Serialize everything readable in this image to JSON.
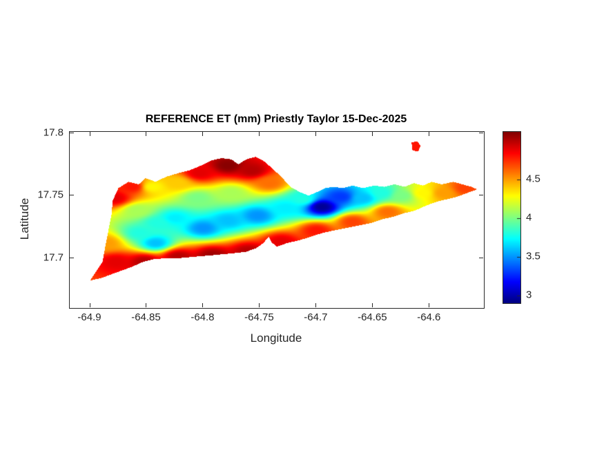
{
  "style": {
    "background": "#ffffff",
    "axis_color": "#262626",
    "title_color": "#000000",
    "colormap_low": "#00008f",
    "colormap_high": "#7f0000"
  },
  "chart_data": {
    "type": "heatmap",
    "title": "REFERENCE ET (mm) Priestly Taylor 15-Dec-2025",
    "xlabel": "Longitude",
    "ylabel": "Latitude",
    "units": "mm",
    "colormap": "jet",
    "grid": false,
    "xlim": [
      -64.918,
      -64.552
    ],
    "ylim": [
      17.66,
      17.801
    ],
    "clim": [
      2.9,
      5.12
    ],
    "x_tick_values": [
      -64.9,
      -64.85,
      -64.8,
      -64.75,
      -64.7,
      -64.65,
      -64.6
    ],
    "x_tick_labels": [
      "-64.9",
      "-64.85",
      "-64.8",
      "-64.75",
      "-64.7",
      "-64.65",
      "-64.6"
    ],
    "y_tick_values": [
      17.7,
      17.75,
      17.8
    ],
    "y_tick_labels": [
      "17.7",
      "17.75",
      "17.8"
    ],
    "colorbar_tick_values": [
      3,
      3.5,
      4,
      4.5
    ],
    "colorbar_tick_labels": [
      "3",
      "3.5",
      "4",
      "4.5"
    ],
    "interpolation": {
      "method": "idw",
      "power": 3,
      "lat_weight": 2.2
    },
    "region_outline": [
      [
        -64.9,
        17.682
      ],
      [
        -64.889,
        17.697
      ],
      [
        -64.886,
        17.712
      ],
      [
        -64.881,
        17.735
      ],
      [
        -64.88,
        17.746
      ],
      [
        -64.875,
        17.756
      ],
      [
        -64.866,
        17.761
      ],
      [
        -64.857,
        17.759
      ],
      [
        -64.851,
        17.764
      ],
      [
        -64.842,
        17.761
      ],
      [
        -64.833,
        17.765
      ],
      [
        -64.822,
        17.768
      ],
      [
        -64.813,
        17.77
      ],
      [
        -64.802,
        17.774
      ],
      [
        -64.793,
        17.778
      ],
      [
        -64.784,
        17.78
      ],
      [
        -64.775,
        17.779
      ],
      [
        -64.769,
        17.775
      ],
      [
        -64.762,
        17.779
      ],
      [
        -64.754,
        17.781
      ],
      [
        -64.747,
        17.778
      ],
      [
        -64.738,
        17.771
      ],
      [
        -64.73,
        17.764
      ],
      [
        -64.723,
        17.757
      ],
      [
        -64.715,
        17.753
      ],
      [
        -64.707,
        17.75
      ],
      [
        -64.699,
        17.753
      ],
      [
        -64.692,
        17.756
      ],
      [
        -64.685,
        17.757
      ],
      [
        -64.677,
        17.756
      ],
      [
        -64.668,
        17.758
      ],
      [
        -64.659,
        17.756
      ],
      [
        -64.649,
        17.758
      ],
      [
        -64.64,
        17.757
      ],
      [
        -64.631,
        17.759
      ],
      [
        -64.622,
        17.757
      ],
      [
        -64.614,
        17.76
      ],
      [
        -64.606,
        17.758
      ],
      [
        -64.598,
        17.761
      ],
      [
        -64.589,
        17.759
      ],
      [
        -64.579,
        17.761
      ],
      [
        -64.571,
        17.759
      ],
      [
        -64.563,
        17.757
      ],
      [
        -64.558,
        17.755
      ],
      [
        -64.567,
        17.752
      ],
      [
        -64.576,
        17.749
      ],
      [
        -64.585,
        17.747
      ],
      [
        -64.594,
        17.745
      ],
      [
        -64.603,
        17.742
      ],
      [
        -64.613,
        17.738
      ],
      [
        -64.622,
        17.736
      ],
      [
        -64.632,
        17.733
      ],
      [
        -64.642,
        17.731
      ],
      [
        -64.652,
        17.728
      ],
      [
        -64.663,
        17.726
      ],
      [
        -64.674,
        17.724
      ],
      [
        -64.685,
        17.722
      ],
      [
        -64.695,
        17.72
      ],
      [
        -64.705,
        17.717
      ],
      [
        -64.716,
        17.714
      ],
      [
        -64.726,
        17.712
      ],
      [
        -64.735,
        17.709
      ],
      [
        -64.74,
        17.713
      ],
      [
        -64.742,
        17.717
      ],
      [
        -64.747,
        17.712
      ],
      [
        -64.753,
        17.708
      ],
      [
        -64.762,
        17.705
      ],
      [
        -64.772,
        17.704
      ],
      [
        -64.783,
        17.703
      ],
      [
        -64.795,
        17.702
      ],
      [
        -64.808,
        17.701
      ],
      [
        -64.82,
        17.7
      ],
      [
        -64.832,
        17.7
      ],
      [
        -64.844,
        17.699
      ],
      [
        -64.853,
        17.697
      ],
      [
        -64.863,
        17.693
      ],
      [
        -64.872,
        17.69
      ],
      [
        -64.881,
        17.687
      ],
      [
        -64.89,
        17.684
      ]
    ],
    "islet_outline": [
      [
        -64.616,
        17.7925
      ],
      [
        -64.611,
        17.7935
      ],
      [
        -64.608,
        17.79
      ],
      [
        -64.61,
        17.7855
      ],
      [
        -64.615,
        17.786
      ]
    ],
    "samples": [
      [
        -64.886,
        17.712,
        4.5
      ],
      [
        -64.878,
        17.748,
        4.9
      ],
      [
        -64.862,
        17.757,
        4.8
      ],
      [
        -64.845,
        17.757,
        4.3
      ],
      [
        -64.858,
        17.738,
        4.1
      ],
      [
        -64.856,
        17.72,
        3.8
      ],
      [
        -64.842,
        17.712,
        3.6
      ],
      [
        -64.877,
        17.697,
        4.9
      ],
      [
        -64.852,
        17.697,
        5.0
      ],
      [
        -64.823,
        17.76,
        4.4
      ],
      [
        -64.803,
        17.768,
        4.9
      ],
      [
        -64.778,
        17.774,
        5.1
      ],
      [
        -64.757,
        17.77,
        5.0
      ],
      [
        -64.741,
        17.76,
        4.6
      ],
      [
        -64.805,
        17.748,
        4.0
      ],
      [
        -64.775,
        17.752,
        4.1
      ],
      [
        -64.84,
        17.728,
        3.8
      ],
      [
        -64.825,
        17.732,
        3.7
      ],
      [
        -64.8,
        17.724,
        3.5
      ],
      [
        -64.778,
        17.73,
        3.6
      ],
      [
        -64.752,
        17.734,
        3.5
      ],
      [
        -64.727,
        17.74,
        3.7
      ],
      [
        -64.822,
        17.701,
        5.0
      ],
      [
        -64.792,
        17.702,
        5.05
      ],
      [
        -64.76,
        17.705,
        5.0
      ],
      [
        -64.731,
        17.713,
        4.9
      ],
      [
        -64.7,
        17.722,
        4.8
      ],
      [
        -64.668,
        17.729,
        4.7
      ],
      [
        -64.637,
        17.737,
        4.6
      ],
      [
        -64.712,
        17.747,
        3.8
      ],
      [
        -64.695,
        17.741,
        2.95
      ],
      [
        -64.678,
        17.749,
        3.3
      ],
      [
        -64.659,
        17.748,
        3.6
      ],
      [
        -64.642,
        17.752,
        3.8
      ],
      [
        -64.624,
        17.75,
        4.0
      ],
      [
        -64.606,
        17.752,
        4.3
      ],
      [
        -64.588,
        17.752,
        4.5
      ],
      [
        -64.568,
        17.756,
        4.7
      ],
      [
        -64.612,
        17.789,
        4.8
      ]
    ]
  }
}
